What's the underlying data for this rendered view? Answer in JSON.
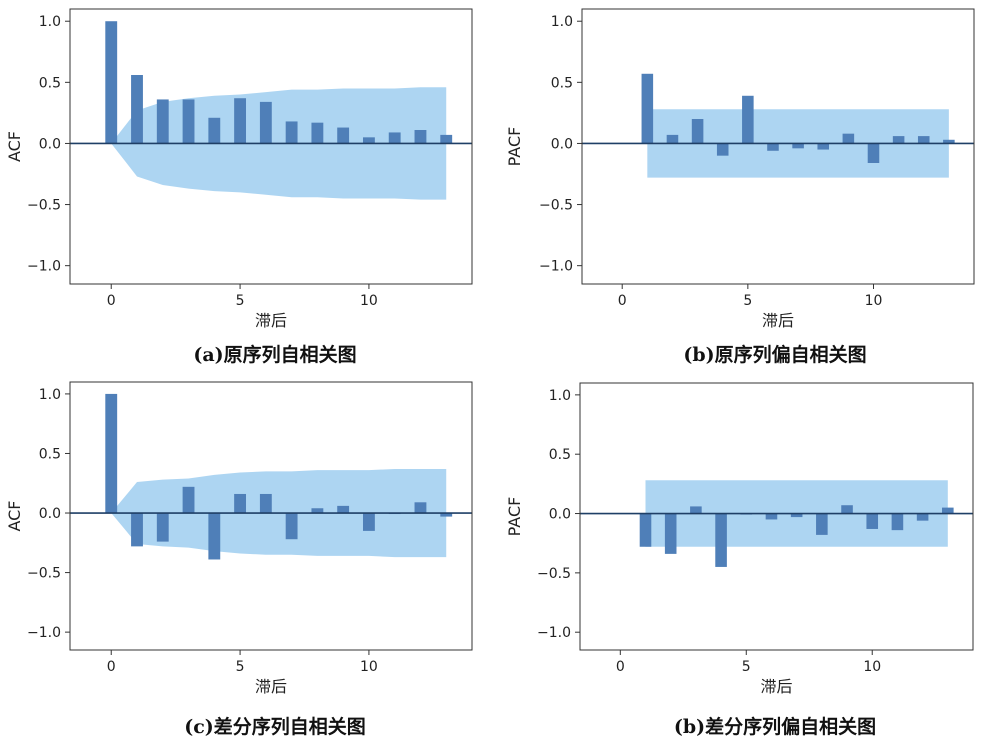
{
  "colors": {
    "bar": "#4f7fb8",
    "confidence_band": "#a9d3f1",
    "axis": "#1f3f66",
    "frame": "#333333"
  },
  "chart_data": [
    {
      "type": "bar",
      "xlabel": "滞后",
      "ylabel": "ACF",
      "caption": "(a)原序列自相关图",
      "x": [
        0,
        1,
        2,
        3,
        4,
        5,
        6,
        7,
        8,
        9,
        10,
        11,
        12,
        13
      ],
      "values": [
        1.0,
        0.56,
        0.36,
        0.36,
        0.21,
        0.37,
        0.34,
        0.18,
        0.17,
        0.13,
        0.05,
        0.09,
        0.11,
        0.07
      ],
      "confidence": {
        "x": [
          0,
          1,
          2,
          3,
          4,
          5,
          6,
          7,
          8,
          9,
          10,
          11,
          12,
          13
        ],
        "upper": [
          0,
          0.27,
          0.34,
          0.37,
          0.39,
          0.4,
          0.42,
          0.44,
          0.44,
          0.45,
          0.45,
          0.45,
          0.46,
          0.46
        ]
      },
      "xlim": [
        -1.6,
        14.0
      ],
      "ylim": [
        -1.15,
        1.1
      ],
      "xticks": [
        0,
        5,
        10
      ],
      "xtick_labels": [
        "0",
        "5",
        "10"
      ],
      "yticks": [
        1.0,
        0.5,
        0.0,
        -0.5,
        -1.0
      ],
      "ytick_labels": [
        "1.0",
        "0.5",
        "0.0",
        "−0.5",
        "−1.0"
      ]
    },
    {
      "type": "bar",
      "xlabel": "滞后",
      "ylabel": "PACF",
      "caption": "(b)原序列偏自相关图",
      "x": [
        1,
        2,
        3,
        4,
        5,
        6,
        7,
        8,
        9,
        10,
        11,
        12,
        13
      ],
      "values": [
        0.57,
        0.07,
        0.2,
        -0.1,
        0.39,
        -0.06,
        -0.04,
        -0.05,
        0.08,
        -0.16,
        0.06,
        0.06,
        0.03
      ],
      "confidence": {
        "x": [
          1,
          13
        ],
        "upper": [
          0.28,
          0.28
        ]
      },
      "xlim": [
        -1.6,
        14.0
      ],
      "ylim": [
        -1.15,
        1.1
      ],
      "xticks": [
        0,
        5,
        10
      ],
      "xtick_labels": [
        "0",
        "5",
        "10"
      ],
      "yticks": [
        1.0,
        0.5,
        0.0,
        -0.5,
        -1.0
      ],
      "ytick_labels": [
        "1.0",
        "0.5",
        "0.0",
        "−0.5",
        "−1.0"
      ]
    },
    {
      "type": "bar",
      "xlabel": "滞后",
      "ylabel": "ACF",
      "caption": "(c)差分序列自相关图",
      "x": [
        0,
        1,
        2,
        3,
        4,
        5,
        6,
        7,
        8,
        9,
        10,
        11,
        12,
        13
      ],
      "values": [
        1.0,
        -0.28,
        -0.24,
        0.22,
        -0.39,
        0.16,
        0.16,
        -0.22,
        0.04,
        0.06,
        -0.15,
        0.0,
        0.09,
        -0.03
      ],
      "confidence": {
        "x": [
          0,
          1,
          2,
          3,
          4,
          5,
          6,
          7,
          8,
          9,
          10,
          11,
          12,
          13
        ],
        "upper": [
          0,
          0.26,
          0.28,
          0.29,
          0.32,
          0.34,
          0.35,
          0.35,
          0.36,
          0.36,
          0.36,
          0.37,
          0.37,
          0.37
        ]
      },
      "xlim": [
        -1.6,
        14.0
      ],
      "ylim": [
        -1.15,
        1.1
      ],
      "xticks": [
        0,
        5,
        10
      ],
      "xtick_labels": [
        "0",
        "5",
        "10"
      ],
      "yticks": [
        1.0,
        0.5,
        0.0,
        -0.5,
        -1.0
      ],
      "ytick_labels": [
        "1.0",
        "0.5",
        "0.0",
        "−0.5",
        "−1.0"
      ]
    },
    {
      "type": "bar",
      "xlabel": "滞后",
      "ylabel": "PACF",
      "caption": "(b)差分序列偏自相关图",
      "x": [
        1,
        2,
        3,
        4,
        5,
        6,
        7,
        8,
        9,
        10,
        11,
        12,
        13
      ],
      "values": [
        -0.28,
        -0.34,
        0.06,
        -0.45,
        0.0,
        -0.05,
        -0.03,
        -0.18,
        0.07,
        -0.13,
        -0.14,
        -0.06,
        0.05
      ],
      "confidence": {
        "x": [
          1,
          13
        ],
        "upper": [
          0.28,
          0.28
        ]
      },
      "xlim": [
        -1.6,
        14.0
      ],
      "ylim": [
        -1.15,
        1.1
      ],
      "xticks": [
        0,
        5,
        10
      ],
      "xtick_labels": [
        "0",
        "5",
        "10"
      ],
      "yticks": [
        1.0,
        0.5,
        0.0,
        -0.5,
        -1.0
      ],
      "ytick_labels": [
        "1.0",
        "0.5",
        "0.0",
        "−0.5",
        "−1.0"
      ]
    }
  ]
}
